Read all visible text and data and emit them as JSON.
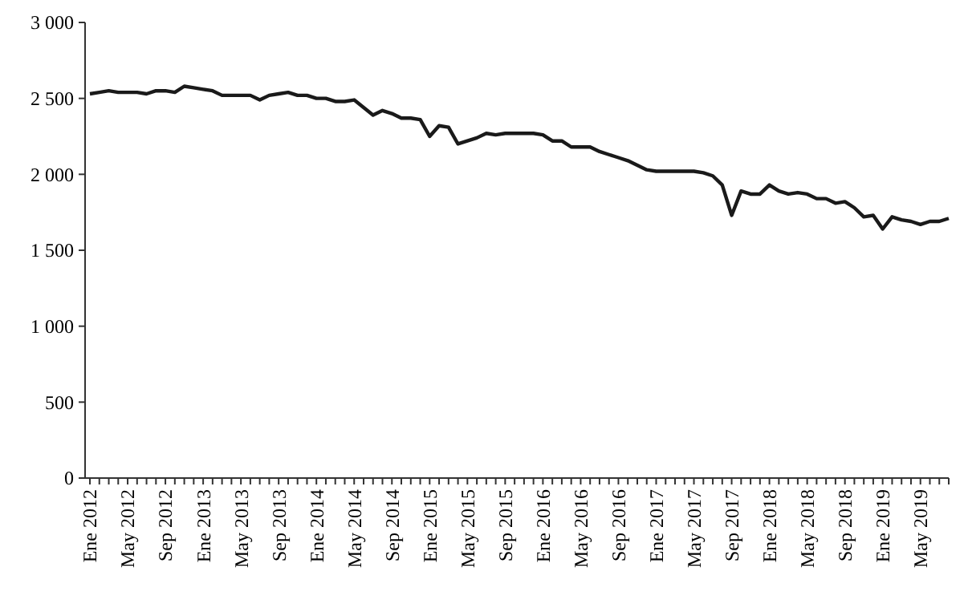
{
  "chart_data": {
    "type": "line",
    "categories": [
      "Ene 2012",
      null,
      null,
      null,
      "May 2012",
      null,
      null,
      null,
      "Sep 2012",
      null,
      null,
      null,
      "Ene 2013",
      null,
      null,
      null,
      "May 2013",
      null,
      null,
      null,
      "Sep 2013",
      null,
      null,
      null,
      "Ene 2014",
      null,
      null,
      null,
      "May 2014",
      null,
      null,
      null,
      "Sep 2014",
      null,
      null,
      null,
      "Ene 2015",
      null,
      null,
      null,
      "May 2015",
      null,
      null,
      null,
      "Sep 2015",
      null,
      null,
      null,
      "Ene 2016",
      null,
      null,
      null,
      "May 2016",
      null,
      null,
      null,
      "Sep 2016",
      null,
      null,
      null,
      "Ene 2017",
      null,
      null,
      null,
      "May 2017",
      null,
      null,
      null,
      "Sep 2017",
      null,
      null,
      null,
      "Ene 2018",
      null,
      null,
      null,
      "May 2018",
      null,
      null,
      null,
      "Sep 2018",
      null,
      null,
      null,
      "Ene 2019",
      null,
      null,
      null,
      "May 2019",
      null,
      null,
      null
    ],
    "series": [
      {
        "color": "#1a1a1a",
        "values": [
          2530,
          2540,
          2550,
          2540,
          2540,
          2540,
          2530,
          2550,
          2550,
          2540,
          2580,
          2570,
          2560,
          2550,
          2520,
          2520,
          2520,
          2520,
          2490,
          2520,
          2530,
          2540,
          2520,
          2520,
          2500,
          2500,
          2480,
          2480,
          2490,
          2440,
          2390,
          2420,
          2400,
          2370,
          2370,
          2360,
          2250,
          2320,
          2310,
          2200,
          2220,
          2240,
          2270,
          2260,
          2270,
          2270,
          2270,
          2270,
          2260,
          2220,
          2220,
          2180,
          2180,
          2180,
          2150,
          2130,
          2110,
          2090,
          2060,
          2030,
          2020,
          2020,
          2020,
          2020,
          2020,
          2010,
          1990,
          1930,
          1730,
          1890,
          1870,
          1870,
          1930,
          1890,
          1870,
          1880,
          1870,
          1840,
          1840,
          1810,
          1820,
          1780,
          1720,
          1730,
          1640,
          1720,
          1700,
          1690,
          1670,
          1690,
          1690,
          1710
        ]
      }
    ],
    "ylim": [
      0,
      3000
    ],
    "yticks": [
      0,
      500,
      {
        "value": 1000,
        "label": "1 000"
      },
      {
        "value": 1500,
        "label": "1 500"
      },
      {
        "value": 2000,
        "label": "2 000"
      },
      {
        "value": 2500,
        "label": "2 500"
      },
      {
        "value": 3000,
        "label": "3 000"
      }
    ],
    "grid": false,
    "marker": "none",
    "line_style": "solid"
  }
}
